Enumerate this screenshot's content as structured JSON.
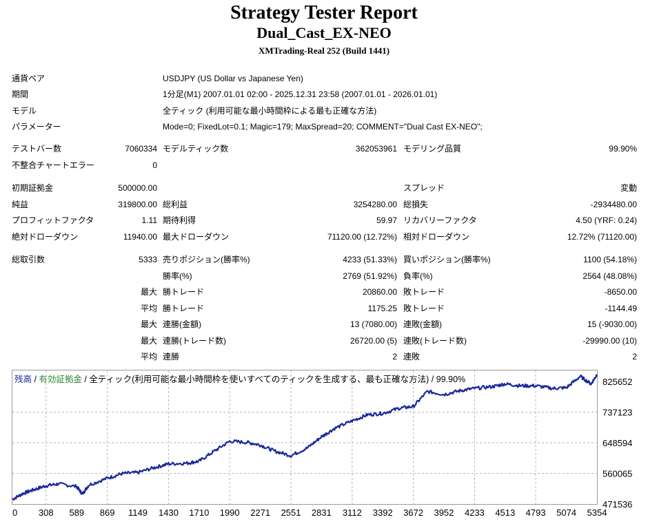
{
  "report": {
    "title": "Strategy Tester Report",
    "ea_name": "Dual_Cast_EX-NEO",
    "server": "XMTrading-Real 252 (Build 1441)"
  },
  "info": [
    {
      "label": "通貨ペア",
      "value": "USDJPY (US Dollar vs Japanese Yen)"
    },
    {
      "label": "期間",
      "value": "1分足(M1) 2007.01.01 02:00 - 2025.12.31 23:58 (2007.01.01 - 2026.01.01)"
    },
    {
      "label": "モデル",
      "value": "全ティック (利用可能な最小時間枠による最も正確な方法)"
    },
    {
      "label": "パラメーター",
      "value": "Mode=0; FixedLot=0.1; Magic=179; MaxSpread=20; COMMENT=\"Dual Cast EX-NEO\";"
    }
  ],
  "stats": {
    "bars_label": "テストバー数",
    "bars_value": "7060334",
    "ticks_label": "モデルティック数",
    "ticks_value": "362053961",
    "quality_label": "モデリング品質",
    "quality_value": "99.90%",
    "mismatch_label": "不整合チャートエラー",
    "mismatch_value": "0",
    "deposit_label": "初期証拠金",
    "deposit_value": "500000.00",
    "spread_label": "スプレッド",
    "spread_value": "変動",
    "net_label": "純益",
    "net_value": "319800.00",
    "gross_profit_label": "総利益",
    "gross_profit_value": "3254280.00",
    "gross_loss_label": "総損失",
    "gross_loss_value": "-2934480.00",
    "pf_label": "プロフィットファクタ",
    "pf_value": "1.11",
    "expected_label": "期待利得",
    "expected_value": "59.97",
    "recovery_label": "リカバリーファクタ",
    "recovery_value": "4.50 (YRF: 0.24)",
    "abs_dd_label": "絶対ドローダウン",
    "abs_dd_value": "11940.00",
    "max_dd_label": "最大ドローダウン",
    "max_dd_value": "71120.00 (12.72%)",
    "rel_dd_label": "相対ドローダウン",
    "rel_dd_value": "12.72% (71120.00)",
    "total_trades_label": "総取引数",
    "total_trades_value": "5333",
    "short_label": "売りポジション(勝率%)",
    "short_value": "4233 (51.33%)",
    "long_label": "買いポジション(勝率%)",
    "long_value": "1100 (54.18%)",
    "win_rate_label": "勝率(%)",
    "win_rate_value": "2769 (51.92%)",
    "loss_rate_label": "負率(%)",
    "loss_rate_value": "2564 (48.08%)",
    "prefix_max": "最大",
    "prefix_avg": "平均",
    "largest_win_label": "勝トレード",
    "largest_win_value": "20860.00",
    "largest_loss_label": "敗トレード",
    "largest_loss_value": "-8650.00",
    "avg_win_label": "勝トレード",
    "avg_win_value": "1175.25",
    "avg_loss_label": "敗トレード",
    "avg_loss_value": "-1144.49",
    "max_consec_wins_money_label": "連勝(金額)",
    "max_consec_wins_money_value": "13 (7080.00)",
    "max_consec_losses_money_label": "連敗(金額)",
    "max_consec_losses_money_value": "15 (-9030.00)",
    "max_consec_profit_label": "連勝(トレード数)",
    "max_consec_profit_value": "26720.00 (5)",
    "max_consec_loss_label": "連敗(トレード数)",
    "max_consec_loss_value": "-29990.00 (10)",
    "avg_consec_wins_label": "連勝",
    "avg_consec_wins_value": "2",
    "avg_consec_losses_label": "連敗",
    "avg_consec_losses_value": "2"
  },
  "chart_title": {
    "balance": "残高",
    "sep1": " / ",
    "equity": "有効証拠金",
    "sep2": " / 全ティック(利用可能な最小時間枠を使いすべてのティックを生成する、最も正確な方法) / 99.90%"
  },
  "chart_data": {
    "type": "line",
    "series": [
      {
        "name": "残高",
        "color": "#1a2a9a",
        "x": [
          0,
          100,
          200,
          308,
          420,
          589,
          640,
          700,
          869,
          1000,
          1149,
          1300,
          1430,
          1600,
          1710,
          1850,
          1990,
          2150,
          2271,
          2400,
          2551,
          2700,
          2831,
          2950,
          3112,
          3250,
          3392,
          3550,
          3672,
          3800,
          3952,
          4100,
          4233,
          4400,
          4513,
          4650,
          4793,
          4950,
          5074,
          5200,
          5300,
          5354
        ],
        "y": [
          484000,
          500000,
          510000,
          520000,
          525000,
          518000,
          498000,
          522000,
          540000,
          552000,
          555000,
          568000,
          578000,
          580000,
          585000,
          612000,
          638000,
          635000,
          628000,
          612000,
          600000,
          620000,
          650000,
          672000,
          692000,
          708000,
          712000,
          726000,
          730000,
          770000,
          762000,
          772000,
          778000,
          783000,
          790000,
          785000,
          785000,
          778000,
          780000,
          810000,
          790000,
          815000
        ]
      }
    ],
    "x_ticks": [
      "0",
      "308",
      "589",
      "869",
      "1149",
      "1430",
      "1710",
      "1990",
      "2271",
      "2551",
      "2831",
      "3112",
      "3392",
      "3672",
      "3952",
      "4233",
      "4513",
      "4793",
      "5074",
      "5354"
    ],
    "y_ticks": [
      "825652",
      "737123",
      "648594",
      "560065",
      "471536"
    ],
    "xlim": [
      0,
      5354
    ],
    "ylim": [
      471536,
      825652
    ],
    "grid": true
  }
}
